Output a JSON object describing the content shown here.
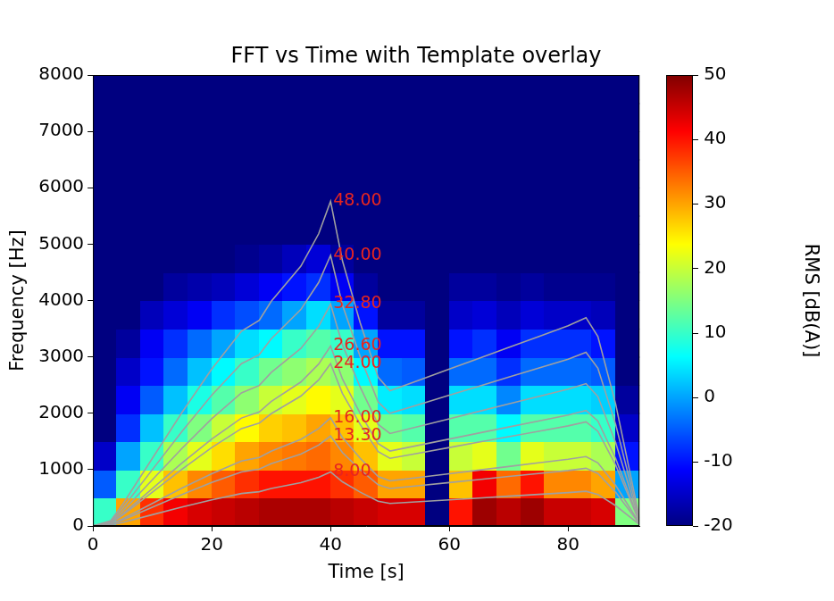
{
  "chart_data": {
    "type": "heatmap",
    "title": "FFT vs Time with Template overlay",
    "x_label": "Time [s]",
    "y_label": "Frequency [Hz]",
    "xlim": [
      0,
      92
    ],
    "xticks": [
      0,
      20,
      40,
      60,
      80
    ],
    "ylim": [
      0,
      8000
    ],
    "yticks": [
      0,
      1000,
      2000,
      3000,
      4000,
      5000,
      6000,
      7000,
      8000
    ],
    "grid": false,
    "heatmap": {
      "x_edges": [
        0,
        4,
        8,
        12,
        16,
        20,
        24,
        28,
        32,
        36,
        40,
        44,
        48,
        52,
        56,
        60,
        64,
        68,
        72,
        76,
        80,
        84,
        88,
        92
      ],
      "y_edges": [
        0,
        500,
        1000,
        1500,
        2000,
        2500,
        3000,
        3500,
        4000,
        4500,
        5000,
        5500,
        6000,
        6500,
        7000,
        7500,
        8000
      ],
      "values": [
        [
          10,
          30,
          38,
          42,
          44,
          45,
          46,
          47,
          47,
          47,
          46,
          45,
          44,
          44,
          -20,
          40,
          48,
          46,
          48,
          45,
          45,
          44,
          15
        ],
        [
          -5,
          10,
          22,
          28,
          32,
          35,
          38,
          40,
          40,
          40,
          38,
          35,
          30,
          30,
          -20,
          28,
          42,
          34,
          40,
          32,
          32,
          30,
          0
        ],
        [
          -15,
          0,
          10,
          18,
          22,
          26,
          30,
          32,
          33,
          34,
          32,
          28,
          22,
          20,
          -20,
          20,
          22,
          14,
          22,
          20,
          20,
          18,
          -10
        ],
        [
          -20,
          -8,
          2,
          10,
          15,
          20,
          24,
          27,
          28,
          30,
          28,
          22,
          14,
          12,
          -20,
          12,
          12,
          6,
          12,
          12,
          12,
          10,
          -15
        ],
        [
          -20,
          -12,
          -5,
          2,
          8,
          12,
          16,
          20,
          22,
          24,
          22,
          14,
          5,
          4,
          -20,
          4,
          4,
          -2,
          4,
          4,
          4,
          3,
          -18
        ],
        [
          -20,
          -15,
          -10,
          -4,
          2,
          6,
          10,
          14,
          16,
          18,
          16,
          6,
          -4,
          -5,
          -20,
          -4,
          -4,
          -8,
          -4,
          -4,
          -4,
          -5,
          -20
        ],
        [
          -20,
          -18,
          -12,
          -8,
          -4,
          0,
          4,
          6,
          10,
          12,
          10,
          0,
          -10,
          -10,
          -20,
          -10,
          -8,
          -12,
          -8,
          -8,
          -8,
          -10,
          -20
        ],
        [
          -20,
          -20,
          -16,
          -14,
          -12,
          -8,
          -6,
          -4,
          0,
          4,
          0,
          -10,
          -18,
          -18,
          -20,
          -15,
          -14,
          -16,
          -14,
          -15,
          -15,
          -16,
          -20
        ],
        [
          -20,
          -20,
          -20,
          -18,
          -17,
          -16,
          -14,
          -12,
          -10,
          -8,
          -12,
          -18,
          -20,
          -20,
          -20,
          -18,
          -18,
          -19,
          -18,
          -19,
          -19,
          -19,
          -20
        ],
        [
          -20,
          -20,
          -20,
          -20,
          -20,
          -20,
          -19,
          -18,
          -16,
          -14,
          -18,
          -20,
          -20,
          -20,
          -20,
          -20,
          -20,
          -20,
          -20,
          -20,
          -20,
          -20,
          -20
        ],
        [
          -20,
          -20,
          -20,
          -20,
          -20,
          -20,
          -20,
          -20,
          -20,
          -20,
          -20,
          -20,
          -20,
          -20,
          -20,
          -20,
          -20,
          -20,
          -20,
          -20,
          -20,
          -20,
          -20
        ],
        [
          -20,
          -20,
          -20,
          -20,
          -20,
          -20,
          -20,
          -20,
          -20,
          -20,
          -20,
          -20,
          -20,
          -20,
          -20,
          -20,
          -20,
          -20,
          -20,
          -20,
          -20,
          -20,
          -20
        ],
        [
          -20,
          -20,
          -20,
          -20,
          -20,
          -20,
          -20,
          -20,
          -20,
          -20,
          -20,
          -20,
          -20,
          -20,
          -20,
          -20,
          -20,
          -20,
          -20,
          -20,
          -20,
          -20,
          -20
        ],
        [
          -20,
          -20,
          -20,
          -20,
          -20,
          -20,
          -20,
          -20,
          -20,
          -20,
          -20,
          -20,
          -20,
          -20,
          -20,
          -20,
          -20,
          -20,
          -20,
          -20,
          -20,
          -20,
          -20
        ],
        [
          -20,
          -20,
          -20,
          -20,
          -20,
          -20,
          -20,
          -20,
          -20,
          -20,
          -20,
          -20,
          -20,
          -20,
          -20,
          -20,
          -20,
          -20,
          -20,
          -20,
          -20,
          -20,
          -20
        ],
        [
          -20,
          -20,
          -20,
          -20,
          -20,
          -20,
          -20,
          -20,
          -20,
          -20,
          -20,
          -20,
          -20,
          -20,
          -20,
          -20,
          -20,
          -20,
          -20,
          -20,
          -20,
          -20,
          -20
        ]
      ]
    },
    "colorbar": {
      "label": "RMS [dB(A)]",
      "lim": [
        -20,
        50
      ],
      "ticks": [
        -20,
        -10,
        0,
        10,
        20,
        30,
        40,
        50
      ]
    },
    "x": [
      0,
      3,
      5,
      10,
      15,
      20,
      25,
      28,
      30,
      35,
      38,
      40,
      42,
      45,
      48,
      50,
      55,
      60,
      65,
      70,
      75,
      80,
      83,
      85,
      88,
      92
    ],
    "series": [
      {
        "name": "8.00",
        "type": "line",
        "color": "#a0a0a0",
        "values": [
          0,
          16,
          64,
          200,
          336,
          464,
          576,
          608,
          664,
          768,
          864,
          960,
          784,
          600,
          440,
          400,
          432,
          464,
          496,
          528,
          560,
          592,
          616,
          560,
          360,
          24
        ]
      },
      {
        "name": "13.30",
        "type": "line",
        "color": "#a0a0a0",
        "values": [
          0,
          27,
          106,
          333,
          559,
          771,
          958,
          1011,
          1104,
          1277,
          1436,
          1596,
          1303,
          998,
          732,
          665,
          718,
          771,
          825,
          878,
          931,
          984,
          1024,
          931,
          599,
          40
        ]
      },
      {
        "name": "16.00",
        "type": "line",
        "color": "#a0a0a0",
        "values": [
          0,
          32,
          128,
          400,
          672,
          928,
          1152,
          1216,
          1328,
          1536,
          1728,
          1920,
          1568,
          1200,
          880,
          800,
          864,
          928,
          992,
          1056,
          1120,
          1184,
          1232,
          1120,
          720,
          48
        ]
      },
      {
        "name": "24.00",
        "type": "line",
        "color": "#a0a0a0",
        "values": [
          0,
          48,
          192,
          600,
          1008,
          1392,
          1728,
          1824,
          1992,
          2304,
          2592,
          2880,
          2352,
          1800,
          1320,
          1200,
          1296,
          1392,
          1488,
          1584,
          1680,
          1776,
          1848,
          1680,
          1080,
          72
        ]
      },
      {
        "name": "26.60",
        "type": "line",
        "color": "#a0a0a0",
        "values": [
          0,
          53,
          213,
          665,
          1117,
          1543,
          1915,
          2022,
          2208,
          2554,
          2873,
          3192,
          2607,
          1995,
          1463,
          1330,
          1436,
          1543,
          1649,
          1756,
          1862,
          1968,
          2048,
          1862,
          1197,
          80
        ]
      },
      {
        "name": "32.80",
        "type": "line",
        "color": "#a0a0a0",
        "values": [
          0,
          66,
          262,
          820,
          1378,
          1902,
          2362,
          2493,
          2722,
          3149,
          3542,
          3936,
          3214,
          2460,
          1804,
          1640,
          1771,
          1902,
          2034,
          2165,
          2296,
          2427,
          2526,
          2296,
          1476,
          98
        ]
      },
      {
        "name": "40.00",
        "type": "line",
        "color": "#a0a0a0",
        "values": [
          0,
          80,
          320,
          1000,
          1680,
          2320,
          2880,
          3040,
          3320,
          3840,
          4320,
          4800,
          3920,
          3000,
          2200,
          2000,
          2160,
          2320,
          2480,
          2640,
          2800,
          2960,
          3080,
          2800,
          1800,
          120
        ]
      },
      {
        "name": "48.00",
        "type": "line",
        "color": "#a0a0a0",
        "values": [
          0,
          96,
          384,
          1200,
          2016,
          2784,
          3456,
          3648,
          3984,
          4608,
          5184,
          5760,
          4704,
          3600,
          2640,
          2400,
          2592,
          2784,
          2976,
          3168,
          3360,
          3552,
          3696,
          3360,
          2160,
          144
        ]
      }
    ]
  }
}
